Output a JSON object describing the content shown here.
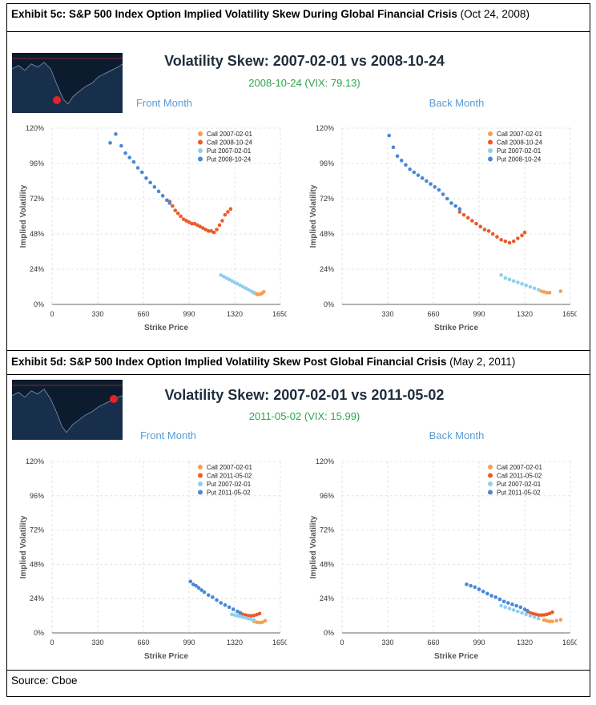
{
  "exhibit5c": {
    "label_bold": "Exhibit 5c: S&P 500 Index Option Implied Volatility Skew During Global Financial Crisis",
    "label_normal": "(Oct 24, 2008)"
  },
  "exhibit5d": {
    "label_bold": "Exhibit 5d: S&P 500 Index Option Implied Volatility Skew Post Global Financial Crisis",
    "label_normal": "(May 2, 2011)"
  },
  "figures": [
    {
      "title": "Volatility Skew: 2007-02-01 vs 2008-10-24",
      "subtitle": "2008-10-24 (VIX: 79.13)",
      "front": "Front Month",
      "back": "Back Month"
    },
    {
      "title": "Volatility Skew: 2007-02-01 vs 2011-05-02",
      "subtitle": "2011-05-02 (VIX: 15.99)",
      "front": "Front Month",
      "back": "Back Month"
    }
  ],
  "source": "Source: Cboe",
  "colors": {
    "call_old": "#f6a04d",
    "call_new": "#ec5a2a",
    "put_old": "#8ecfee",
    "put_new": "#4a88d6",
    "grid": "#dddddd",
    "marker": "#e8202a"
  },
  "chart_data": [
    {
      "type": "scatter",
      "panel": "Front Month",
      "date": "2008-10-24",
      "xlabel": "Strike Price",
      "ylabel": "Implied Volatility",
      "xlim": [
        0,
        1650
      ],
      "ylim": [
        0,
        120
      ],
      "xticks": [
        "0",
        "330",
        "660",
        "990",
        "1320",
        "1650"
      ],
      "yticks": [
        "0%",
        "24%",
        "48%",
        "72%",
        "96%",
        "120%"
      ],
      "legend": "top-right",
      "series": [
        {
          "name": "Call 2007-02-01",
          "color": "#f6a04d",
          "x": [
            1455,
            1470,
            1480,
            1490,
            1500,
            1510,
            1520,
            1530
          ],
          "y": [
            8.2,
            7.5,
            7.0,
            6.8,
            6.9,
            7.2,
            7.8,
            8.6
          ]
        },
        {
          "name": "Call 2008-10-24",
          "color": "#ec5a2a",
          "x": [
            850,
            870,
            890,
            910,
            930,
            950,
            970,
            990,
            1010,
            1030,
            1050,
            1070,
            1090,
            1110,
            1130,
            1150,
            1170,
            1190,
            1210,
            1230,
            1250,
            1270,
            1290
          ],
          "y": [
            70,
            67,
            64,
            62,
            60,
            58,
            57,
            56,
            55,
            55,
            54,
            53,
            52,
            51,
            50,
            50,
            49,
            51,
            54,
            57,
            61,
            63,
            65
          ]
        },
        {
          "name": "Put 2007-02-01",
          "color": "#8ecfee",
          "x": [
            1220,
            1240,
            1260,
            1280,
            1300,
            1320,
            1340,
            1360,
            1380,
            1400,
            1420,
            1440,
            1460
          ],
          "y": [
            20,
            19,
            18,
            17,
            16,
            15,
            14,
            13,
            12,
            11,
            10,
            9,
            8
          ]
        },
        {
          "name": "Put 2008-10-24",
          "color": "#4a88d6",
          "x": [
            420,
            460,
            500,
            530,
            560,
            590,
            620,
            650,
            680,
            710,
            740,
            770,
            800,
            830,
            850
          ],
          "y": [
            110,
            116,
            108,
            103,
            100,
            97,
            93,
            90,
            86,
            83,
            80,
            77,
            74,
            71,
            69
          ]
        }
      ]
    },
    {
      "type": "scatter",
      "panel": "Back Month",
      "date": "2008-10-24",
      "xlabel": "Strike Price",
      "ylabel": "Implied Volatility",
      "xlim": [
        0,
        1650
      ],
      "ylim": [
        0,
        120
      ],
      "xticks": [
        "330",
        "660",
        "990",
        "1320",
        "1650"
      ],
      "yticks": [
        "0%",
        "24%",
        "48%",
        "72%",
        "96%",
        "120%"
      ],
      "legend": "top-right",
      "series": [
        {
          "name": "Call 2007-02-01",
          "color": "#f6a04d",
          "x": [
            1440,
            1460,
            1480,
            1500,
            1580
          ],
          "y": [
            9,
            8.5,
            8,
            8,
            9
          ]
        },
        {
          "name": "Call 2008-10-24",
          "color": "#ec5a2a",
          "x": [
            850,
            880,
            910,
            940,
            970,
            1000,
            1030,
            1060,
            1090,
            1120,
            1150,
            1180,
            1210,
            1240,
            1270,
            1300,
            1320
          ],
          "y": [
            63,
            61,
            59,
            57,
            55,
            53,
            51,
            50,
            48,
            46,
            44,
            43,
            42,
            43,
            45,
            47,
            49
          ]
        },
        {
          "name": "Put 2007-02-01",
          "color": "#8ecfee",
          "x": [
            1150,
            1180,
            1210,
            1240,
            1270,
            1300,
            1330,
            1360,
            1390,
            1420
          ],
          "y": [
            20,
            18,
            17,
            16,
            15,
            14,
            13,
            12,
            11,
            10
          ]
        },
        {
          "name": "Put 2008-10-24",
          "color": "#4a88d6",
          "x": [
            340,
            370,
            400,
            430,
            460,
            490,
            520,
            550,
            580,
            610,
            640,
            670,
            700,
            730,
            760,
            790,
            820,
            850
          ],
          "y": [
            115,
            107,
            101,
            98,
            95,
            92,
            90,
            88,
            86,
            84,
            82,
            80,
            78,
            75,
            72,
            69,
            67,
            65
          ]
        }
      ]
    },
    {
      "type": "scatter",
      "panel": "Front Month",
      "date": "2011-05-02",
      "xlabel": "Strike Price",
      "ylabel": "Implied Volatility",
      "xlim": [
        0,
        1650
      ],
      "ylim": [
        0,
        120
      ],
      "xticks": [
        "0",
        "330",
        "660",
        "990",
        "1320",
        "1650"
      ],
      "yticks": [
        "0%",
        "24%",
        "48%",
        "72%",
        "96%",
        "120%"
      ],
      "legend": "top-right",
      "series": [
        {
          "name": "Call 2007-02-01",
          "color": "#f6a04d",
          "x": [
            1460,
            1480,
            1500,
            1520,
            1540
          ],
          "y": [
            8,
            7.5,
            7.2,
            7.5,
            8.5
          ]
        },
        {
          "name": "Call 2011-05-02",
          "color": "#ec5a2a",
          "x": [
            1360,
            1380,
            1400,
            1420,
            1440,
            1460,
            1480,
            1500
          ],
          "y": [
            14,
            13,
            12.5,
            12,
            12,
            12.2,
            12.8,
            13.5
          ]
        },
        {
          "name": "Put 2007-02-01",
          "color": "#8ecfee",
          "x": [
            1300,
            1320,
            1340,
            1360,
            1380,
            1400,
            1420,
            1440,
            1460
          ],
          "y": [
            13,
            12.5,
            12,
            11.5,
            11,
            10.5,
            10,
            9.5,
            9
          ]
        },
        {
          "name": "Put 2011-05-02",
          "color": "#4a88d6",
          "x": [
            1000,
            1020,
            1040,
            1060,
            1080,
            1100,
            1130,
            1160,
            1190,
            1220,
            1250,
            1280,
            1310,
            1340,
            1360
          ],
          "y": [
            36,
            34,
            33,
            31.5,
            30,
            28.5,
            26.5,
            25,
            23,
            21,
            19.5,
            18,
            16.5,
            15,
            14
          ]
        }
      ]
    },
    {
      "type": "scatter",
      "panel": "Back Month",
      "date": "2011-05-02",
      "xlabel": "Strike Price",
      "ylabel": "Implied Volatility",
      "xlim": [
        0,
        1650
      ],
      "ylim": [
        0,
        120
      ],
      "xticks": [
        "0",
        "330",
        "660",
        "990",
        "1320",
        "1650"
      ],
      "yticks": [
        "0%",
        "24%",
        "48%",
        "72%",
        "96%",
        "120%"
      ],
      "legend": "top-right",
      "series": [
        {
          "name": "Call 2007-02-01",
          "color": "#f6a04d",
          "x": [
            1460,
            1480,
            1500,
            1520,
            1550,
            1580
          ],
          "y": [
            9,
            8.5,
            8,
            8,
            8.5,
            9.2
          ]
        },
        {
          "name": "Call 2011-05-02",
          "color": "#ec5a2a",
          "x": [
            1340,
            1360,
            1380,
            1400,
            1420,
            1440,
            1460,
            1480,
            1500,
            1520
          ],
          "y": [
            15,
            14,
            13.5,
            13,
            12.5,
            12.5,
            12.6,
            13,
            13.6,
            14.5
          ]
        },
        {
          "name": "Put 2007-02-01",
          "color": "#8ecfee",
          "x": [
            1150,
            1180,
            1210,
            1240,
            1270,
            1300,
            1330,
            1360,
            1390,
            1420
          ],
          "y": [
            19,
            18,
            17,
            16,
            15,
            14,
            13,
            12,
            11,
            10
          ]
        },
        {
          "name": "Put 2011-05-02",
          "color": "#4a88d6",
          "x": [
            900,
            930,
            960,
            990,
            1020,
            1050,
            1080,
            1110,
            1140,
            1170,
            1200,
            1230,
            1260,
            1290,
            1320,
            1340
          ],
          "y": [
            34,
            33,
            32,
            30.5,
            29,
            27.5,
            26,
            25,
            23.5,
            22,
            21,
            20,
            19,
            18,
            16.5,
            15.5
          ]
        }
      ]
    }
  ]
}
